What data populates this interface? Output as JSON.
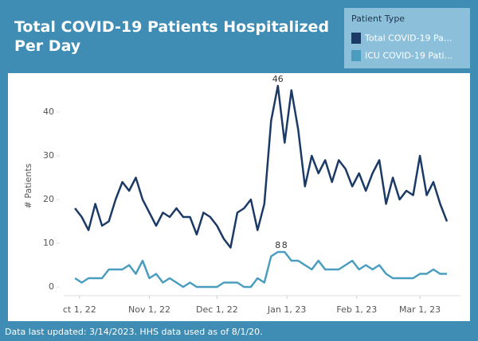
{
  "chart_data": {
    "type": "line",
    "title": "Total COVID-19 Patients Hospitalized Per Day",
    "legend_title": "Patient Type",
    "ylabel": "# Patients",
    "footer": "Data last updated: 3/14/2023. HHS data used as of 8/1/20.",
    "x": [
      "2022-09-29",
      "2022-10-02",
      "2022-10-05",
      "2022-10-08",
      "2022-10-11",
      "2022-10-14",
      "2022-10-17",
      "2022-10-20",
      "2022-10-23",
      "2022-10-26",
      "2022-10-29",
      "2022-11-01",
      "2022-11-04",
      "2022-11-07",
      "2022-11-10",
      "2022-11-13",
      "2022-11-16",
      "2022-11-19",
      "2022-11-22",
      "2022-11-25",
      "2022-11-28",
      "2022-12-01",
      "2022-12-04",
      "2022-12-07",
      "2022-12-10",
      "2022-12-13",
      "2022-12-16",
      "2022-12-19",
      "2022-12-22",
      "2022-12-25",
      "2022-12-28",
      "2022-12-31",
      "2023-01-03",
      "2023-01-06",
      "2023-01-09",
      "2023-01-12",
      "2023-01-15",
      "2023-01-18",
      "2023-01-21",
      "2023-01-24",
      "2023-01-27",
      "2023-01-30",
      "2023-02-02",
      "2023-02-05",
      "2023-02-08",
      "2023-02-11",
      "2023-02-14",
      "2023-02-17",
      "2023-02-20",
      "2023-02-23",
      "2023-02-26",
      "2023-03-01",
      "2023-03-04",
      "2023-03-07",
      "2023-03-10",
      "2023-03-13"
    ],
    "series": [
      {
        "name": "Total COVID-19 Pa...",
        "color": "#1c3a66",
        "values": [
          18,
          16,
          13,
          19,
          14,
          15,
          20,
          24,
          22,
          25,
          20,
          17,
          14,
          17,
          16,
          18,
          16,
          16,
          12,
          17,
          16,
          14,
          11,
          9,
          17,
          18,
          20,
          13,
          19,
          38,
          46,
          33,
          45,
          36,
          23,
          30,
          26,
          29,
          24,
          29,
          27,
          23,
          26,
          22,
          26,
          29,
          19,
          25,
          20,
          22,
          21,
          30,
          21,
          24,
          19,
          15
        ]
      },
      {
        "name": "ICU COVID-19 Pati...",
        "color": "#4a9dbf",
        "values": [
          2,
          1,
          2,
          2,
          2,
          4,
          4,
          4,
          5,
          3,
          6,
          2,
          3,
          1,
          2,
          1,
          0,
          1,
          0,
          0,
          0,
          0,
          1,
          1,
          1,
          0,
          0,
          2,
          1,
          7,
          8,
          8,
          6,
          6,
          5,
          4,
          6,
          4,
          4,
          4,
          5,
          6,
          4,
          5,
          4,
          5,
          3,
          2,
          2,
          2,
          2,
          3,
          3,
          4,
          3,
          3
        ]
      }
    ],
    "annotations": [
      {
        "x": "2022-12-28",
        "value": 46
      },
      {
        "x": "2022-12-28",
        "value": 8
      },
      {
        "x": "2022-12-31",
        "value": 8
      }
    ],
    "xlim": [
      "2022-09-24",
      "2023-03-19"
    ],
    "xticks": [
      {
        "value": "2022-10-01",
        "label": "ct 1, 22"
      },
      {
        "value": "2022-11-01",
        "label": "Nov 1, 22"
      },
      {
        "value": "2022-12-01",
        "label": "Dec 1, 22"
      },
      {
        "value": "2023-01-01",
        "label": "Jan 1, 23"
      },
      {
        "value": "2023-02-01",
        "label": "Feb 1, 23"
      },
      {
        "value": "2023-03-01",
        "label": "Mar 1, 23"
      }
    ],
    "ylim": [
      -2,
      48
    ],
    "yticks": [
      0,
      10,
      20,
      30,
      40
    ],
    "grid": false
  }
}
